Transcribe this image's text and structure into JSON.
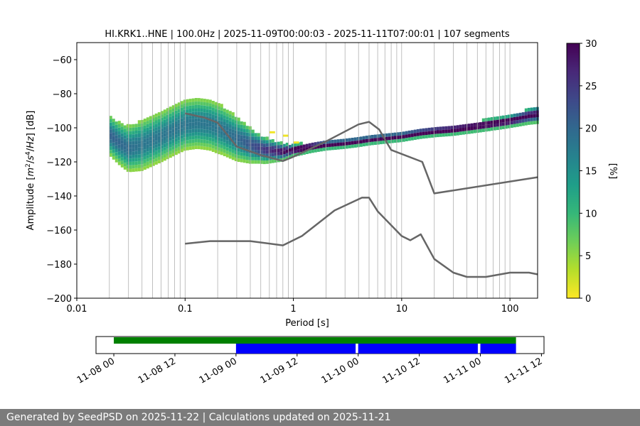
{
  "chart_data": {
    "type": "heatmap",
    "title": "HI.KRK1..HNE | 100.0Hz | 2025-11-09T00:00:03 - 2025-11-11T07:00:01 | 107 segments",
    "xlabel": "Period [s]",
    "ylabel_parts": [
      "Amplitude [",
      "m",
      "2",
      "/",
      "s",
      "4",
      "/",
      "Hz",
      "] [dB]"
    ],
    "x_scale": "log",
    "xlim": [
      0.01,
      180
    ],
    "ylim": [
      -200,
      -50
    ],
    "x_ticks": [
      {
        "value": 0.01,
        "label": "0.01"
      },
      {
        "value": 0.1,
        "label": "0.1"
      },
      {
        "value": 1,
        "label": "1"
      },
      {
        "value": 10,
        "label": "10"
      },
      {
        "value": 100,
        "label": "100"
      }
    ],
    "y_ticks": [
      {
        "value": -60,
        "label": "−60"
      },
      {
        "value": -80,
        "label": "−80"
      },
      {
        "value": -100,
        "label": "−100"
      },
      {
        "value": -120,
        "label": "−120"
      },
      {
        "value": -140,
        "label": "−140"
      },
      {
        "value": -160,
        "label": "−160"
      },
      {
        "value": -180,
        "label": "−180"
      },
      {
        "value": -200,
        "label": "−200"
      }
    ],
    "grid": "vertical",
    "colorbar": {
      "label": "[%]",
      "range": [
        0,
        30
      ],
      "ticks": [
        {
          "value": 0,
          "label": "0"
        },
        {
          "value": 5,
          "label": "5"
        },
        {
          "value": 10,
          "label": "10"
        },
        {
          "value": 15,
          "label": "15"
        },
        {
          "value": 20,
          "label": "20"
        },
        {
          "value": 25,
          "label": "25"
        },
        {
          "value": 30,
          "label": "30"
        }
      ],
      "colormap": [
        "#fde725",
        "#b5de2b",
        "#6ece58",
        "#35b779",
        "#1f9e89",
        "#26828e",
        "#31688e",
        "#3e4989",
        "#482878",
        "#440154"
      ]
    },
    "psd_mode": [
      [
        0.02,
        -104
      ],
      [
        0.025,
        -109
      ],
      [
        0.03,
        -112
      ],
      [
        0.04,
        -110
      ],
      [
        0.06,
        -105
      ],
      [
        0.08,
        -101
      ],
      [
        0.1,
        -98
      ],
      [
        0.13,
        -97
      ],
      [
        0.17,
        -98
      ],
      [
        0.22,
        -101
      ],
      [
        0.3,
        -106
      ],
      [
        0.4,
        -110
      ],
      [
        0.55,
        -113
      ],
      [
        0.8,
        -114
      ],
      [
        1.0,
        -113
      ],
      [
        1.5,
        -111
      ],
      [
        2,
        -110
      ],
      [
        3,
        -109
      ],
      [
        4,
        -108
      ],
      [
        5,
        -107
      ],
      [
        7,
        -106
      ],
      [
        10,
        -105
      ],
      [
        15,
        -103
      ],
      [
        20,
        -102
      ],
      [
        30,
        -101
      ],
      [
        50,
        -99
      ],
      [
        80,
        -97
      ],
      [
        100,
        -96
      ],
      [
        150,
        -93
      ],
      [
        180,
        -92
      ]
    ],
    "psd_spread_db": [
      [
        0.02,
        7
      ],
      [
        0.04,
        9
      ],
      [
        0.1,
        9
      ],
      [
        0.2,
        9
      ],
      [
        0.3,
        8
      ],
      [
        0.5,
        5
      ],
      [
        0.8,
        3
      ],
      [
        1.0,
        2
      ],
      [
        2,
        1.5
      ],
      [
        10,
        1.5
      ],
      [
        100,
        2
      ],
      [
        180,
        3
      ]
    ],
    "secondary_band": [
      [
        0.6,
        -102
      ],
      [
        0.8,
        -104
      ],
      [
        1.0,
        -108
      ]
    ],
    "reference_curves": [
      {
        "color": "#666666",
        "points": [
          [
            0.1,
            -91.5
          ],
          [
            0.15,
            -94
          ],
          [
            0.2,
            -97
          ],
          [
            0.3,
            -111
          ],
          [
            0.5,
            -116
          ],
          [
            0.8,
            -119.5
          ],
          [
            1.0,
            -117
          ],
          [
            2.0,
            -108
          ],
          [
            4.0,
            -98
          ],
          [
            5.0,
            -96.5
          ],
          [
            6.2,
            -101
          ],
          [
            8.0,
            -113
          ],
          [
            15.5,
            -120
          ],
          [
            20.0,
            -138.5
          ],
          [
            180,
            -129
          ]
        ]
      },
      {
        "color": "#666666",
        "points": [
          [
            0.1,
            -168
          ],
          [
            0.17,
            -166.5
          ],
          [
            0.4,
            -166.5
          ],
          [
            0.8,
            -169
          ],
          [
            1.2,
            -163.5
          ],
          [
            2.4,
            -148.5
          ],
          [
            4.3,
            -141
          ],
          [
            5.0,
            -141
          ],
          [
            6.0,
            -149
          ],
          [
            10.0,
            -163.5
          ],
          [
            12.0,
            -166
          ],
          [
            15.0,
            -162.5
          ],
          [
            20.0,
            -177
          ],
          [
            30.0,
            -185
          ],
          [
            40.0,
            -187.5
          ],
          [
            60.0,
            -187.5
          ],
          [
            100.0,
            -185
          ],
          [
            150.0,
            -185
          ],
          [
            180,
            -186
          ]
        ]
      }
    ],
    "availability": {
      "x_ticks": [
        "11-08 00",
        "11-08 12",
        "11-09 00",
        "11-09 12",
        "11-10 00",
        "11-10 12",
        "11-11 00",
        "11-11 12"
      ],
      "xlim_hours": [
        -3.5,
        84.5
      ],
      "data_span": {
        "color": "#008000",
        "start": 0,
        "end": 79
      },
      "segments": [
        {
          "color": "#0000ff",
          "start": 24,
          "end": 47.5
        },
        {
          "color": "#0000ff",
          "start": 48,
          "end": 71.5
        },
        {
          "color": "#0000ff",
          "start": 72,
          "end": 79
        }
      ]
    }
  },
  "footer": {
    "text": "Generated by SeedPSD on 2025-11-22 | Calculations updated on 2025-11-21"
  }
}
